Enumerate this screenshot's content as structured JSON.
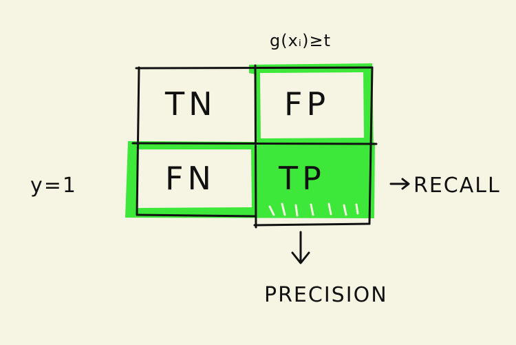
{
  "diagram": {
    "condition_label": "g(xᵢ)≥t",
    "row_label": "y=1",
    "cells": {
      "tn": "TN",
      "fp": "FP",
      "fn": "FN",
      "tp": "TP"
    },
    "recall_label": "RECALL",
    "precision_label": "PRECISION",
    "highlight_color": "#3ee83a",
    "ink_color": "#111111",
    "background_color": "#f6f4e2"
  }
}
